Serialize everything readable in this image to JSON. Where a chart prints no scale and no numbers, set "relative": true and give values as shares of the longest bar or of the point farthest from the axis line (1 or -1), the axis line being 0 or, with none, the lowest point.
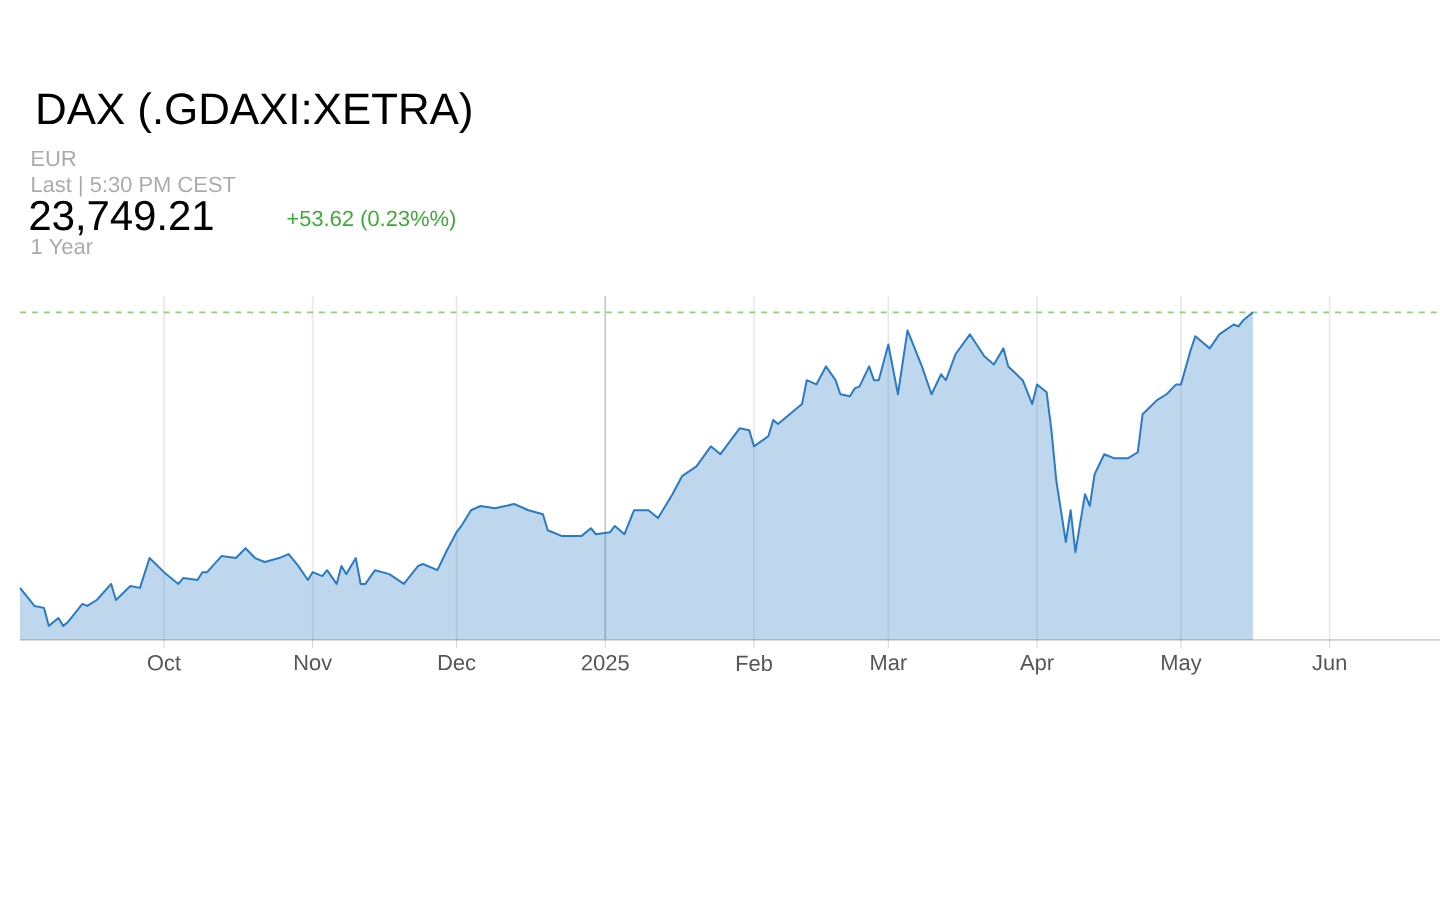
{
  "chart_data": {
    "type": "area",
    "title": "DAX (.GDAXI:XETRA)",
    "annotations": [
      "EUR",
      "Last | 5:30 PM CEST",
      "23,749.21",
      "+53.62 (0.23%%)",
      "1 Year"
    ],
    "relative": true,
    "x": [
      "2024-09-01",
      "2024-09-04",
      "2024-09-06",
      "2024-09-07",
      "2024-09-09",
      "2024-09-10",
      "2024-09-11",
      "2024-09-14",
      "2024-09-15",
      "2024-09-17",
      "2024-09-20",
      "2024-09-21",
      "2024-09-24",
      "2024-09-26",
      "2024-09-28",
      "2024-10-01",
      "2024-10-04",
      "2024-10-05",
      "2024-10-08",
      "2024-10-09",
      "2024-10-10",
      "2024-10-13",
      "2024-10-16",
      "2024-10-18",
      "2024-10-20",
      "2024-10-22",
      "2024-10-25",
      "2024-10-27",
      "2024-10-29",
      "2024-10-31",
      "2024-11-01",
      "2024-11-03",
      "2024-11-04",
      "2024-11-06",
      "2024-11-07",
      "2024-11-08",
      "2024-11-10",
      "2024-11-11",
      "2024-11-12",
      "2024-11-14",
      "2024-11-17",
      "2024-11-20",
      "2024-11-23",
      "2024-11-24",
      "2024-11-27",
      "2024-11-29",
      "2024-12-01",
      "2024-12-02",
      "2024-12-04",
      "2024-12-06",
      "2024-12-09",
      "2024-12-13",
      "2024-12-16",
      "2024-12-19",
      "2024-12-20",
      "2024-12-23",
      "2024-12-27",
      "2024-12-29",
      "2024-12-30",
      "2025-01-02",
      "2025-01-03",
      "2025-01-05",
      "2025-01-07",
      "2025-01-10",
      "2025-01-12",
      "2025-01-15",
      "2025-01-17",
      "2025-01-20",
      "2025-01-23",
      "2025-01-25",
      "2025-01-29",
      "2025-01-31",
      "2025-02-01",
      "2025-02-04",
      "2025-02-05",
      "2025-02-06",
      "2025-02-11",
      "2025-02-12",
      "2025-02-14",
      "2025-02-16",
      "2025-02-18",
      "2025-02-19",
      "2025-02-21",
      "2025-02-22",
      "2025-02-23",
      "2025-02-25",
      "2025-02-26",
      "2025-02-27",
      "2025-03-01",
      "2025-03-03",
      "2025-03-05",
      "2025-03-08",
      "2025-03-10",
      "2025-03-12",
      "2025-03-13",
      "2025-03-15",
      "2025-03-18",
      "2025-03-21",
      "2025-03-23",
      "2025-03-25",
      "2025-03-26",
      "2025-03-29",
      "2025-03-31",
      "2025-04-01",
      "2025-04-03",
      "2025-04-04",
      "2025-04-05",
      "2025-04-07",
      "2025-04-08",
      "2025-04-09",
      "2025-04-11",
      "2025-04-12",
      "2025-04-13",
      "2025-04-15",
      "2025-04-17",
      "2025-04-20",
      "2025-04-22",
      "2025-04-23",
      "2025-04-26",
      "2025-04-28",
      "2025-04-30",
      "2025-05-01",
      "2025-05-03",
      "2025-05-04",
      "2025-05-07",
      "2025-05-09",
      "2025-05-12",
      "2025-05-13",
      "2025-05-14",
      "2025-05-15",
      "2025-05-16"
    ],
    "series": [
      {
        "color": "#2a7bc4",
        "values": [
          0.159,
          0.104,
          0.098,
          0.043,
          0.067,
          0.043,
          0.055,
          0.11,
          0.104,
          0.122,
          0.171,
          0.122,
          0.165,
          0.159,
          0.25,
          0.207,
          0.171,
          0.189,
          0.183,
          0.207,
          0.207,
          0.256,
          0.25,
          0.28,
          0.25,
          0.238,
          0.25,
          0.262,
          0.226,
          0.183,
          0.207,
          0.195,
          0.213,
          0.171,
          0.226,
          0.201,
          0.25,
          0.171,
          0.171,
          0.213,
          0.201,
          0.171,
          0.226,
          0.232,
          0.213,
          0.274,
          0.329,
          0.348,
          0.396,
          0.409,
          0.402,
          0.415,
          0.396,
          0.384,
          0.335,
          0.317,
          0.317,
          0.341,
          0.323,
          0.329,
          0.348,
          0.323,
          0.396,
          0.396,
          0.372,
          0.445,
          0.5,
          0.53,
          0.591,
          0.567,
          0.646,
          0.64,
          0.591,
          0.622,
          0.671,
          0.659,
          0.72,
          0.793,
          0.78,
          0.835,
          0.793,
          0.75,
          0.744,
          0.768,
          0.774,
          0.835,
          0.793,
          0.793,
          0.902,
          0.75,
          0.945,
          0.835,
          0.75,
          0.811,
          0.793,
          0.872,
          0.933,
          0.866,
          0.841,
          0.89,
          0.835,
          0.793,
          0.72,
          0.78,
          0.756,
          0.64,
          0.488,
          0.299,
          0.396,
          0.268,
          0.445,
          0.409,
          0.506,
          0.567,
          0.555,
          0.555,
          0.573,
          0.689,
          0.732,
          0.75,
          0.78,
          0.78,
          0.884,
          0.927,
          0.89,
          0.933,
          0.963,
          0.957,
          0.976,
          0.988,
          1
        ]
      }
    ],
    "xlim": [
      "2024-09-01",
      "2025-06-24"
    ],
    "xticks": [
      {
        "value": "2024-10-01",
        "label": "Oct"
      },
      {
        "value": "2024-11-01",
        "label": "Nov"
      },
      {
        "value": "2024-12-01",
        "label": "Dec"
      },
      {
        "value": "2025-01-01",
        "label": "2025"
      },
      {
        "value": "2025-02-01",
        "label": "Feb"
      },
      {
        "value": "2025-03-01",
        "label": "Mar"
      },
      {
        "value": "2025-04-01",
        "label": "Apr"
      },
      {
        "value": "2025-05-01",
        "label": "May"
      },
      {
        "value": "2025-06-01",
        "label": "Jun"
      }
    ],
    "ref_lines": [
      {
        "axis": "y",
        "value": 1,
        "color": "#8fd17a",
        "line_style": "dashed"
      },
      {
        "axis": "x",
        "value": "2025-01-01",
        "color": "#c8c8c8",
        "line_style": "solid"
      }
    ],
    "grid": true,
    "marker": "none",
    "line_style": "solid"
  }
}
